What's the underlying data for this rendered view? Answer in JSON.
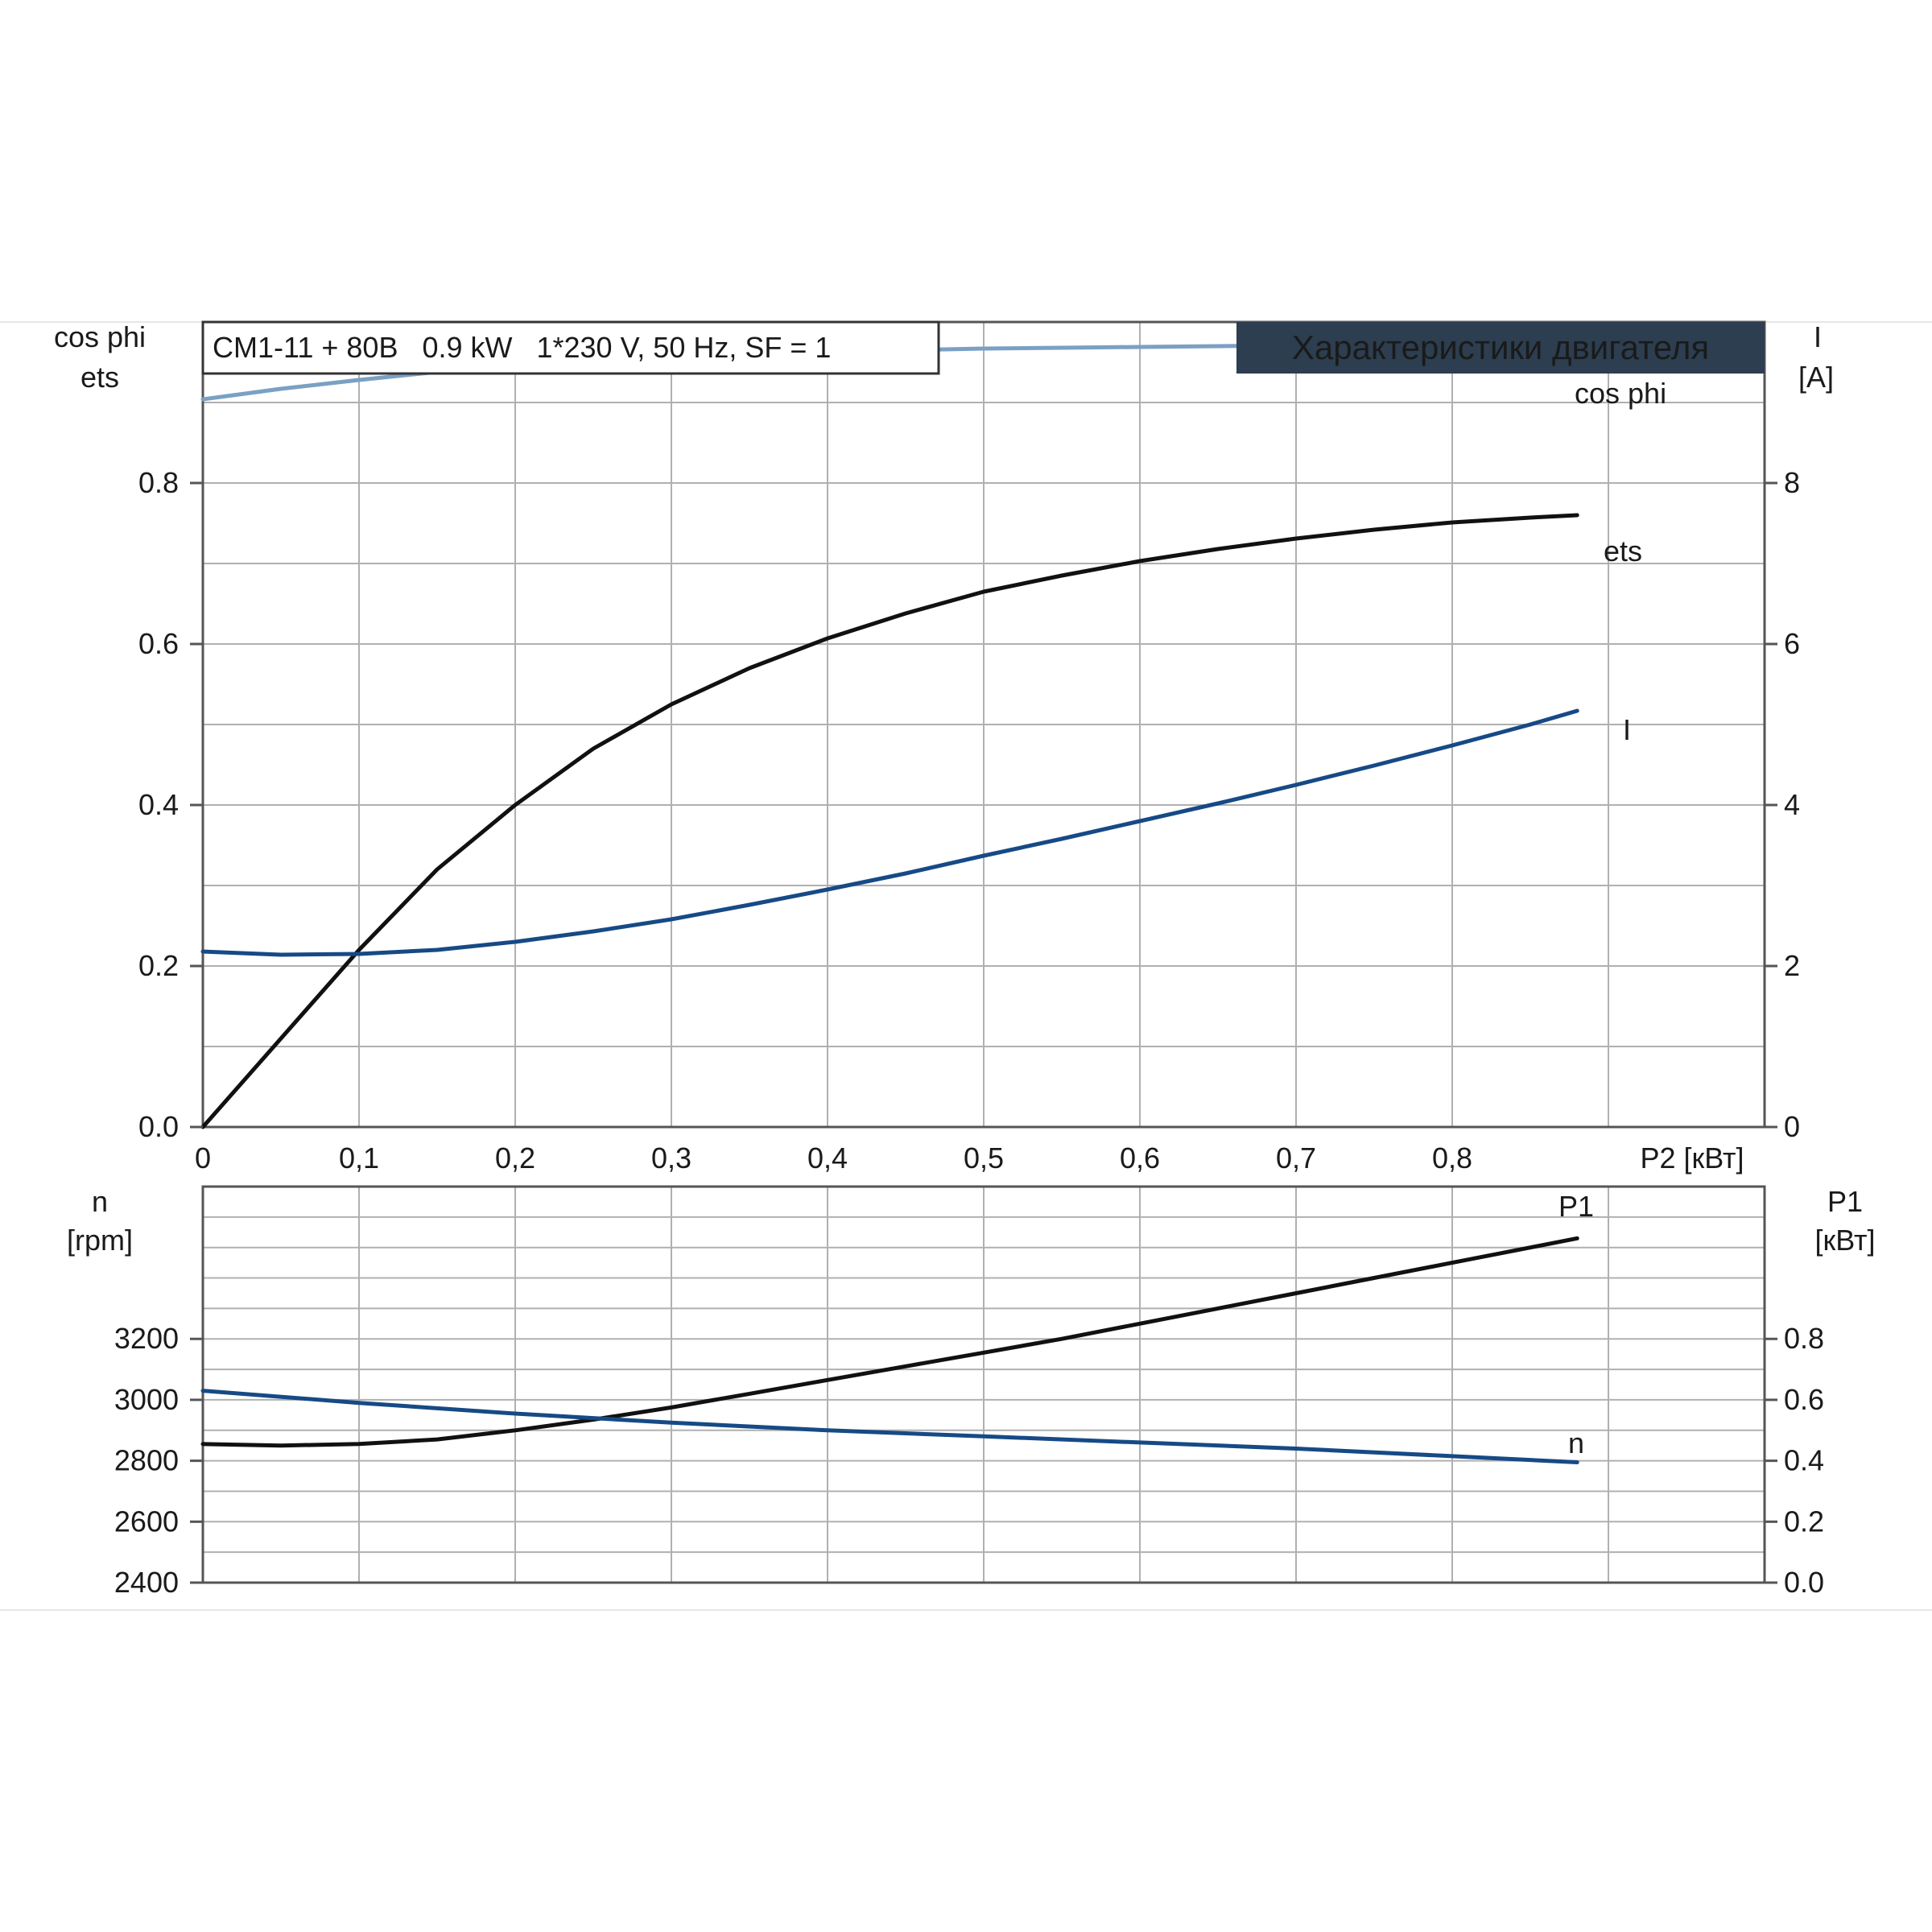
{
  "header": {
    "motor_label": "CM1-11 + 80B   0.9 kW   1*230 V, 50 Hz, SF = 1",
    "title": "Характеристики двигателя"
  },
  "colors": {
    "black": "#111111",
    "dark_blue": "#164a86",
    "light_blue": "#7aa0c4",
    "title_bg": "#2c3e50",
    "title_fg": "#ffffff"
  },
  "chart_data": [
    {
      "type": "line",
      "panel": "top",
      "x_label": "P2 [кВт]",
      "x_ticks": [
        "0",
        "0,1",
        "0,2",
        "0,3",
        "0,4",
        "0,5",
        "0,6",
        "0,7",
        "0,8"
      ],
      "xlim": [
        0,
        1.0
      ],
      "left_axis_label_1": "cos phi",
      "left_axis_label_2": "ets",
      "left_ticks": [
        "0.0",
        "0.2",
        "0.4",
        "0.6",
        "0.8"
      ],
      "left_ylim": [
        0,
        1.0
      ],
      "right_axis_label_1": "I",
      "right_axis_label_2": "[A]",
      "right_ticks": [
        "0",
        "2",
        "4",
        "6",
        "8"
      ],
      "right_ylim": [
        0,
        10
      ],
      "grid": true,
      "series": [
        {
          "name": "cos phi",
          "axis": "left",
          "color": "light_blue",
          "x": [
            0,
            0.05,
            0.1,
            0.15,
            0.2,
            0.25,
            0.3,
            0.35,
            0.4,
            0.45,
            0.5,
            0.55,
            0.6,
            0.65,
            0.7,
            0.75,
            0.8,
            0.85,
            0.88
          ],
          "y": [
            0.904,
            0.917,
            0.928,
            0.938,
            0.946,
            0.952,
            0.957,
            0.96,
            0.963,
            0.965,
            0.967,
            0.968,
            0.969,
            0.97,
            0.971,
            0.972,
            0.973,
            0.974,
            0.975
          ]
        },
        {
          "name": "ets",
          "axis": "left",
          "color": "black",
          "x": [
            0,
            0.05,
            0.1,
            0.15,
            0.2,
            0.25,
            0.3,
            0.35,
            0.4,
            0.45,
            0.5,
            0.55,
            0.6,
            0.65,
            0.7,
            0.75,
            0.8,
            0.85,
            0.88
          ],
          "y": [
            0.0,
            0.11,
            0.22,
            0.32,
            0.4,
            0.47,
            0.525,
            0.57,
            0.607,
            0.638,
            0.665,
            0.685,
            0.703,
            0.718,
            0.731,
            0.742,
            0.751,
            0.757,
            0.76
          ]
        },
        {
          "name": "I",
          "axis": "right",
          "color": "dark_blue",
          "x": [
            0,
            0.05,
            0.1,
            0.15,
            0.2,
            0.25,
            0.3,
            0.35,
            0.4,
            0.45,
            0.5,
            0.55,
            0.6,
            0.65,
            0.7,
            0.75,
            0.8,
            0.85,
            0.88
          ],
          "y": [
            2.18,
            2.14,
            2.15,
            2.2,
            2.3,
            2.43,
            2.58,
            2.76,
            2.95,
            3.15,
            3.37,
            3.58,
            3.8,
            4.02,
            4.25,
            4.49,
            4.74,
            5.0,
            5.17
          ]
        }
      ]
    },
    {
      "type": "line",
      "panel": "bottom",
      "xlim": [
        0,
        1.0
      ],
      "left_axis_label_1": "n",
      "left_axis_label_2": "[rpm]",
      "left_ticks": [
        "2400",
        "2600",
        "2800",
        "3000",
        "3200"
      ],
      "left_ylim": [
        2400,
        3700
      ],
      "right_axis_label_1": "P1",
      "right_axis_label_2": "[кВт]",
      "right_ticks": [
        "0.0",
        "0.2",
        "0.4",
        "0.6",
        "0.8"
      ],
      "right_ylim": [
        0,
        1.3
      ],
      "grid": true,
      "series": [
        {
          "name": "P1",
          "axis": "right",
          "color": "black",
          "x": [
            0,
            0.05,
            0.1,
            0.15,
            0.2,
            0.25,
            0.3,
            0.35,
            0.4,
            0.45,
            0.5,
            0.55,
            0.6,
            0.65,
            0.7,
            0.75,
            0.8,
            0.85,
            0.88
          ],
          "y": [
            0.455,
            0.45,
            0.455,
            0.47,
            0.5,
            0.535,
            0.575,
            0.62,
            0.665,
            0.71,
            0.755,
            0.8,
            0.85,
            0.9,
            0.95,
            1.0,
            1.05,
            1.1,
            1.13
          ]
        },
        {
          "name": "n",
          "axis": "left",
          "color": "dark_blue",
          "x": [
            0,
            0.1,
            0.2,
            0.3,
            0.4,
            0.5,
            0.6,
            0.7,
            0.8,
            0.88
          ],
          "y": [
            3030,
            2990,
            2955,
            2925,
            2900,
            2880,
            2860,
            2840,
            2815,
            2795
          ]
        }
      ]
    }
  ]
}
